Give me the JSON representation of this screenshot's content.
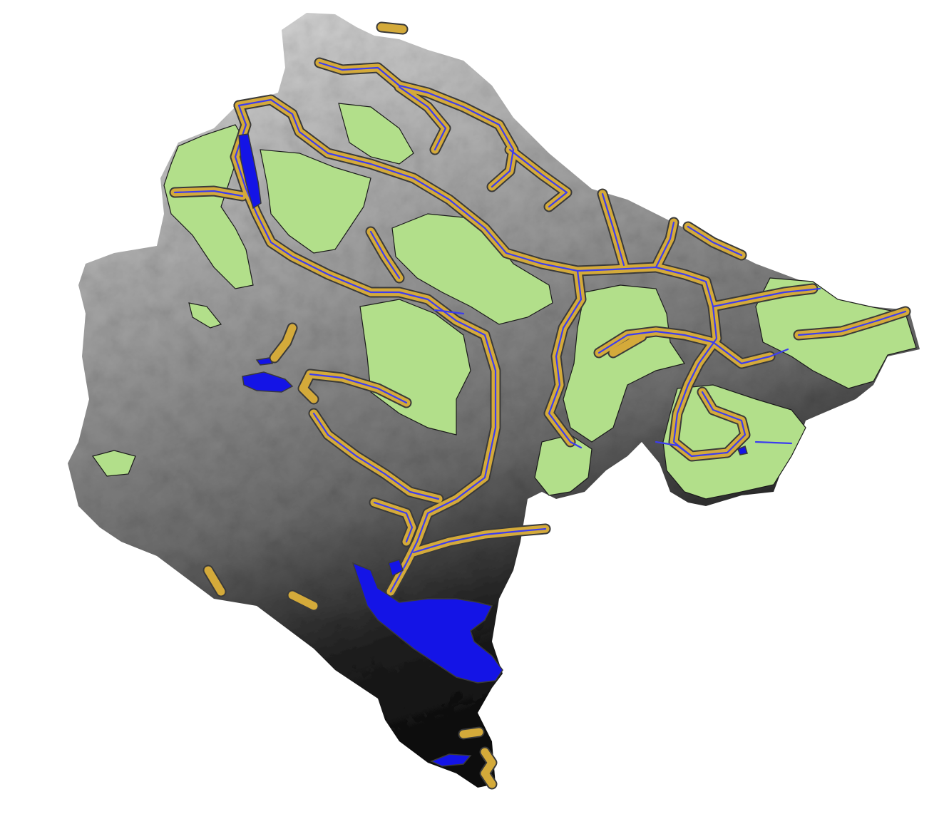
{
  "map": {
    "layers": [
      {
        "id": "dem",
        "kind": "raster",
        "style": "grayscale elevation (dark = low, light = high)"
      },
      {
        "id": "forest",
        "kind": "polygon",
        "fill": "#B2DF8A",
        "stroke": "#1A1A1A"
      },
      {
        "id": "river-buffers",
        "kind": "polygon",
        "fill": "#D4AA3A",
        "stroke": "#4A4A4A"
      },
      {
        "id": "rivers",
        "kind": "line",
        "stroke": "#3C3CF0"
      },
      {
        "id": "lakes",
        "kind": "polygon",
        "fill": "#1414E6",
        "stroke": "#3A3A3A"
      }
    ],
    "colors": {
      "background": "#FFFFFF",
      "dem_high": "#D8D8D8",
      "dem_mid": "#8C8C8C",
      "dem_low": "#0A0A0A",
      "forest_fill": "#B2DF8A",
      "buffer_fill": "#D4AA3A",
      "river_line": "#3C3CF0",
      "lake_fill": "#1414E6"
    }
  }
}
